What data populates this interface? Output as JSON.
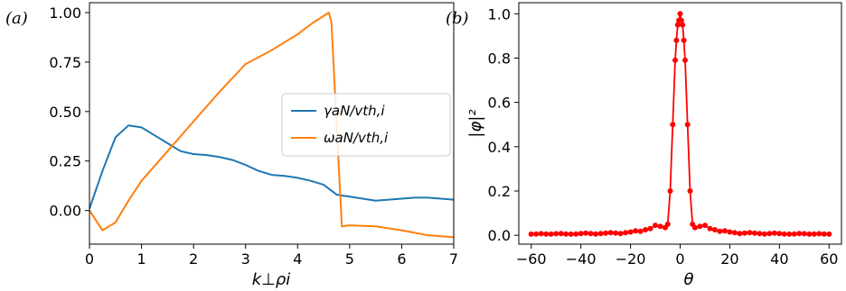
{
  "chart_data": [
    {
      "panel_label": "(a)",
      "type": "line",
      "xlabel": "k⊥ρi",
      "ylabel": "",
      "xlim": [
        0,
        7
      ],
      "ylim": [
        -0.17,
        1.05
      ],
      "xticks": [
        "0",
        "1",
        "2",
        "3",
        "4",
        "5",
        "6",
        "7"
      ],
      "yticks": [
        "0.00",
        "0.25",
        "0.50",
        "0.75",
        "1.00"
      ],
      "legend_position": "center-right",
      "series": [
        {
          "name": "γaN/vth,i",
          "color": "#1f77b4",
          "x": [
            0.0,
            0.25,
            0.5,
            0.75,
            1.0,
            1.25,
            1.5,
            1.75,
            2.0,
            2.25,
            2.5,
            2.75,
            3.0,
            3.25,
            3.5,
            3.75,
            4.0,
            4.25,
            4.5,
            4.75,
            5.0,
            5.25,
            5.5,
            5.75,
            6.0,
            6.25,
            6.5,
            6.75,
            7.0
          ],
          "y": [
            0.01,
            0.2,
            0.37,
            0.43,
            0.42,
            0.38,
            0.34,
            0.3,
            0.285,
            0.28,
            0.27,
            0.255,
            0.23,
            0.2,
            0.18,
            0.175,
            0.165,
            0.15,
            0.13,
            0.08,
            0.07,
            0.06,
            0.05,
            0.055,
            0.06,
            0.065,
            0.065,
            0.06,
            0.055
          ]
        },
        {
          "name": "ωaN/vth,i",
          "color": "#ff7f0e",
          "x": [
            0.0,
            0.25,
            0.5,
            0.75,
            1.0,
            1.5,
            2.0,
            2.5,
            3.0,
            3.5,
            4.0,
            4.3,
            4.6,
            4.65,
            4.85,
            5.0,
            5.5,
            6.0,
            6.5,
            7.0
          ],
          "y": [
            0.0,
            -0.1,
            -0.06,
            0.05,
            0.15,
            0.3,
            0.45,
            0.6,
            0.74,
            0.81,
            0.89,
            0.95,
            1.0,
            0.95,
            -0.08,
            -0.075,
            -0.08,
            -0.1,
            -0.125,
            -0.135
          ]
        }
      ]
    },
    {
      "panel_label": "(b)",
      "type": "line",
      "xlabel": "θ",
      "ylabel": "|φ|²",
      "xlim": [
        -65,
        65
      ],
      "ylim": [
        -0.04,
        1.05
      ],
      "xticks": [
        "−60",
        "−40",
        "−20",
        "0",
        "20",
        "40",
        "60"
      ],
      "yticks": [
        "0.0",
        "0.2",
        "0.4",
        "0.6",
        "0.8",
        "1.0"
      ],
      "series": [
        {
          "name": "",
          "color": "#ff0000",
          "x": [
            -60,
            -58,
            -56,
            -54,
            -52,
            -50,
            -48,
            -46,
            -44,
            -42,
            -40,
            -38,
            -36,
            -34,
            -32,
            -30,
            -28,
            -26,
            -24,
            -22,
            -20,
            -18,
            -16,
            -14,
            -12,
            -10,
            -8,
            -6,
            -5,
            -4,
            -3,
            -2,
            -1.5,
            -1,
            -0.5,
            0,
            0.5,
            1,
            1.5,
            2,
            3,
            4,
            5,
            6,
            8,
            10,
            12,
            14,
            16,
            18,
            20,
            22,
            24,
            26,
            28,
            30,
            32,
            34,
            36,
            38,
            40,
            42,
            44,
            46,
            48,
            50,
            52,
            54,
            56,
            58,
            60
          ],
          "y": [
            0.005,
            0.006,
            0.007,
            0.006,
            0.005,
            0.007,
            0.008,
            0.006,
            0.005,
            0.006,
            0.008,
            0.01,
            0.008,
            0.006,
            0.008,
            0.01,
            0.012,
            0.01,
            0.008,
            0.012,
            0.015,
            0.02,
            0.018,
            0.025,
            0.03,
            0.045,
            0.04,
            0.035,
            0.05,
            0.2,
            0.5,
            0.79,
            0.88,
            0.95,
            0.97,
            1.0,
            0.97,
            0.95,
            0.88,
            0.79,
            0.5,
            0.2,
            0.05,
            0.035,
            0.04,
            0.045,
            0.03,
            0.025,
            0.018,
            0.02,
            0.015,
            0.012,
            0.008,
            0.01,
            0.012,
            0.01,
            0.008,
            0.006,
            0.008,
            0.01,
            0.008,
            0.006,
            0.005,
            0.006,
            0.008,
            0.007,
            0.005,
            0.006,
            0.007,
            0.006,
            0.005
          ]
        }
      ]
    }
  ]
}
